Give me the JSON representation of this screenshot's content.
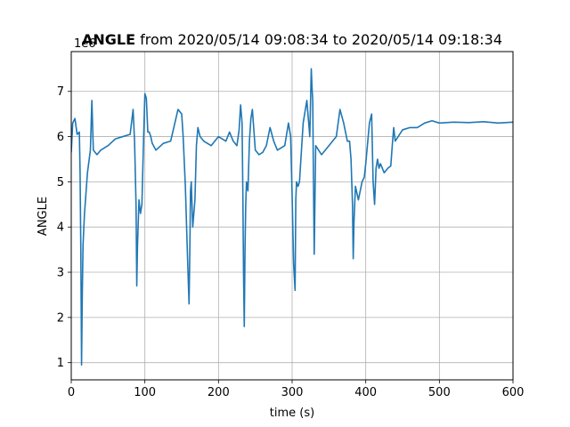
{
  "chart_data": {
    "type": "line",
    "title_bold": "ANGLE",
    "title_rest": " from 2020/05/14 09:08:34 to 2020/05/14 09:18:34",
    "xlabel": "time (s)",
    "ylabel": "ANGLE",
    "offset_label": "1e6",
    "xlim": [
      0,
      600
    ],
    "ylim": [
      0.62,
      7.88
    ],
    "xticks": [
      0,
      100,
      200,
      300,
      400,
      500,
      600
    ],
    "yticks": [
      1,
      2,
      3,
      4,
      5,
      6,
      7
    ],
    "grid": true,
    "series_color": "#1f77b4",
    "series": [
      {
        "x": [
          0,
          2,
          5,
          8,
          11,
          12,
          13,
          14,
          15,
          16,
          18,
          22,
          26,
          28,
          30,
          35,
          40,
          50,
          60,
          70,
          80,
          84,
          86,
          88,
          89,
          90,
          92,
          94,
          96,
          98,
          100,
          102,
          104,
          106,
          108,
          110,
          115,
          125,
          135,
          145,
          150,
          152,
          155,
          158,
          160,
          161,
          162,
          163,
          165,
          168,
          170,
          172,
          175,
          180,
          190,
          200,
          210,
          215,
          220,
          225,
          228,
          230,
          232,
          233,
          234,
          235,
          236,
          237,
          238,
          240,
          242,
          244,
          246,
          250,
          255,
          260,
          265,
          270,
          275,
          280,
          290,
          295,
          298,
          300,
          302,
          304,
          305,
          306,
          308,
          310,
          315,
          320,
          324,
          326,
          327,
          328,
          329,
          330,
          332,
          340,
          350,
          360,
          365,
          370,
          375,
          378,
          380,
          382,
          383,
          384,
          386,
          390,
          395,
          398,
          400,
          405,
          408,
          410,
          412,
          414,
          416,
          418,
          420,
          425,
          430,
          434,
          436,
          438,
          440,
          450,
          460,
          470,
          480,
          490,
          500,
          520,
          540,
          560,
          580,
          600
        ],
        "y": [
          5.65,
          6.3,
          6.4,
          6.05,
          6.1,
          5.2,
          3.5,
          0.95,
          2.5,
          3.6,
          4.3,
          5.2,
          5.7,
          6.8,
          5.7,
          5.6,
          5.7,
          5.8,
          5.95,
          6.0,
          6.05,
          6.6,
          5.9,
          4.5,
          2.7,
          3.6,
          4.6,
          4.3,
          4.5,
          5.8,
          6.95,
          6.85,
          6.1,
          6.1,
          6.0,
          5.85,
          5.7,
          5.85,
          5.9,
          6.6,
          6.5,
          6.0,
          4.9,
          3.3,
          2.3,
          3.4,
          4.8,
          5.0,
          4.0,
          4.6,
          5.8,
          6.2,
          6.0,
          5.9,
          5.8,
          6.0,
          5.9,
          6.1,
          5.9,
          5.8,
          6.15,
          6.7,
          6.3,
          4.9,
          3.0,
          1.8,
          3.5,
          4.5,
          5.0,
          4.8,
          5.9,
          6.4,
          6.6,
          5.7,
          5.6,
          5.65,
          5.8,
          6.2,
          5.9,
          5.7,
          5.8,
          6.3,
          6.0,
          4.7,
          3.2,
          2.6,
          4.6,
          5.0,
          4.9,
          5.0,
          6.3,
          6.8,
          6.0,
          7.5,
          7.1,
          6.8,
          5.0,
          3.4,
          5.8,
          5.6,
          5.8,
          6.0,
          6.6,
          6.3,
          5.9,
          5.9,
          5.5,
          4.5,
          3.3,
          4.1,
          4.9,
          4.6,
          5.0,
          5.1,
          5.4,
          6.3,
          6.5,
          5.0,
          4.5,
          5.3,
          5.5,
          5.3,
          5.4,
          5.2,
          5.3,
          5.35,
          5.8,
          6.2,
          5.9,
          6.15,
          6.2,
          6.2,
          6.3,
          6.35,
          6.3,
          6.32,
          6.31,
          6.33,
          6.3,
          6.32
        ]
      }
    ]
  }
}
